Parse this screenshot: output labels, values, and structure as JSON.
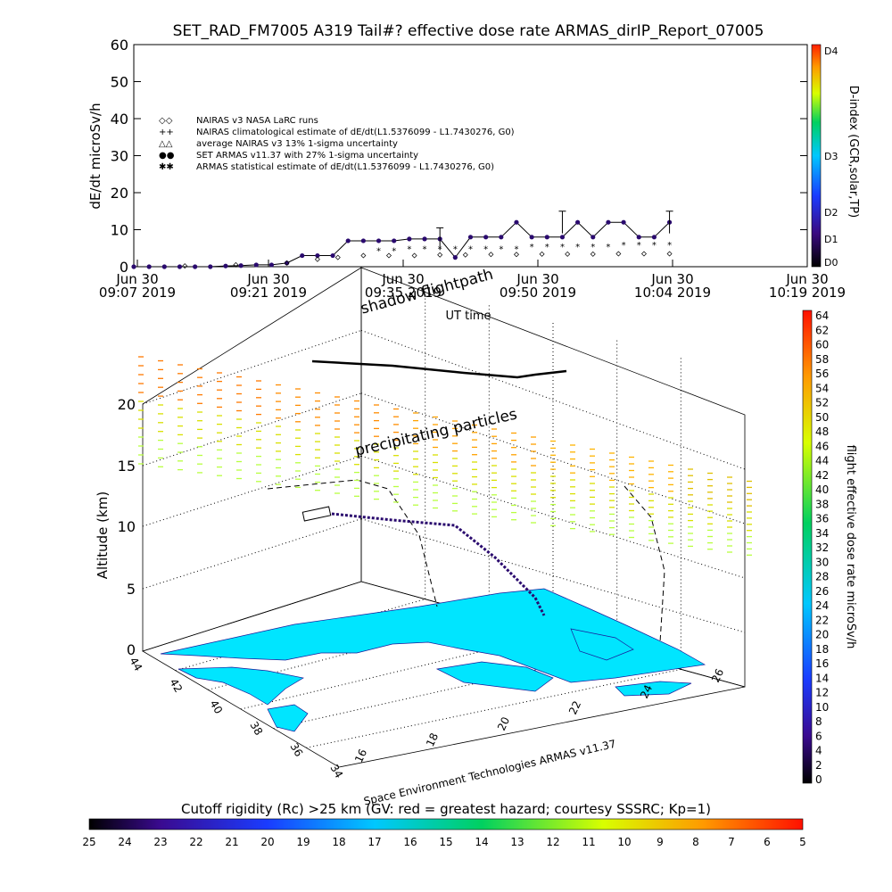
{
  "title": "SET_RAD_FM7005  A319 Tail#? effective dose rate ARMAS_dirIP_Report_07005",
  "colors": {
    "series_main": "#2a0a6e",
    "map_land": "#00e5ff"
  },
  "chart_data": [
    {
      "type": "line",
      "ylabel": "dE/dt microSv/h",
      "xlabel": "UT time",
      "ylim": [
        0,
        60
      ],
      "yticks": [
        "0",
        "10",
        "20",
        "30",
        "40",
        "50",
        "60"
      ],
      "xticks": [
        {
          "line1": "Jun 30",
          "line2": "09:07 2019"
        },
        {
          "line1": "Jun 30",
          "line2": "09:21 2019"
        },
        {
          "line1": "Jun 30",
          "line2": "09:35 2019"
        },
        {
          "line1": "Jun 30",
          "line2": "09:50 2019"
        },
        {
          "line1": "Jun 30",
          "line2": "10:04 2019"
        },
        {
          "line1": "Jun 30",
          "line2": "10:19 2019"
        }
      ],
      "legend": [
        {
          "symbol": "◇◇",
          "label": "NAIRAS v3 NASA LaRC runs"
        },
        {
          "symbol": "++",
          "label": "NAIRAS climatological estimate of dE/dt(L1.5376099 - L1.7430276, G0)"
        },
        {
          "symbol": "△△",
          "label": "average NAIRAS v3 13% 1-sigma uncertainty"
        },
        {
          "symbol": "●●",
          "label": "SET ARMAS v11.37 with 27% 1-sigma uncertainty"
        },
        {
          "symbol": "✱✱",
          "label": "ARMAS statistical estimate of dE/dt(L1.5376099 - L1.7430276, G0)"
        }
      ],
      "legend_position": "upper-left",
      "series": [
        {
          "name": "SET ARMAS v11.37 with 27% 1-sigma uncertainty",
          "x_minutes": [
            0,
            3,
            6,
            9,
            12,
            15,
            18,
            21,
            24,
            27,
            30,
            33,
            36,
            39,
            42,
            45,
            48,
            51,
            54,
            57,
            60,
            63,
            66,
            69,
            72,
            75,
            78,
            81,
            84,
            87,
            90,
            93,
            96,
            99,
            102,
            105
          ],
          "y": [
            0,
            0,
            0,
            0,
            0,
            0,
            0.2,
            0.3,
            0.5,
            0.5,
            1,
            3,
            3,
            3,
            7,
            7,
            7,
            7,
            7.5,
            7.5,
            7.5,
            2.5,
            8,
            8,
            8,
            12,
            8,
            8,
            8,
            12,
            8,
            12,
            12,
            8,
            8,
            12
          ]
        },
        {
          "name": "ARMAS statistical estimate of dE/dt(L1.5376099 - L1.7430276, G0)",
          "x_minutes": [
            48,
            51,
            54,
            57,
            60,
            63,
            66,
            69,
            72,
            75,
            78,
            81,
            84,
            87,
            90,
            93,
            96,
            99,
            102,
            105
          ],
          "y": [
            4.5,
            4.5,
            5,
            5,
            5,
            5,
            5,
            5,
            5,
            5,
            5.5,
            5.5,
            5.5,
            5.5,
            5.5,
            5.5,
            6,
            6,
            6,
            6
          ]
        },
        {
          "name": "NAIRAS v3 NASA LaRC runs",
          "x_minutes": [
            10,
            20,
            30,
            36,
            40,
            45,
            50,
            55,
            60,
            65,
            70,
            75,
            80,
            85,
            90,
            95,
            100,
            105
          ],
          "y": [
            0.2,
            0.5,
            1,
            2,
            2.5,
            3,
            3,
            3,
            3.2,
            3.2,
            3.3,
            3.3,
            3.4,
            3.4,
            3.4,
            3.5,
            3.5,
            3.5
          ]
        }
      ],
      "x_range_minutes": [
        0,
        132
      ],
      "colorbar": {
        "label": "D-index (GCR,solar,TP)",
        "ticks": [
          "D0",
          "D1",
          "D2",
          "D3",
          "D4"
        ]
      }
    },
    {
      "type": "scatter",
      "ylabel": "Altitude (km)",
      "zticks": [
        "0",
        "5",
        "10",
        "15",
        "20"
      ],
      "lat_ticks": [
        "44",
        "42",
        "40",
        "38",
        "36",
        "34"
      ],
      "lon_ticks": [
        "16",
        "18",
        "20",
        "22",
        "24",
        "26"
      ],
      "annotations": [
        "shadow flightpath",
        "precipitating particles"
      ],
      "credit": "Space Environment Technologies ARMAS v11.37",
      "colorbar_right": {
        "label": "flight effective dose rate microSv/h",
        "range": [
          0,
          64
        ],
        "ticks": [
          "0",
          "2",
          "4",
          "6",
          "8",
          "10",
          "12",
          "14",
          "16",
          "18",
          "20",
          "22",
          "24",
          "26",
          "28",
          "30",
          "32",
          "34",
          "36",
          "38",
          "40",
          "42",
          "44",
          "46",
          "48",
          "50",
          "52",
          "54",
          "56",
          "58",
          "60",
          "62",
          "64"
        ]
      },
      "colorbar_bottom": {
        "label": "Cutoff rigidity (Rc) >25 km (GV: red = greatest hazard; courtesy SSSRC; Kp=1)",
        "ticks": [
          "25",
          "24",
          "23",
          "22",
          "21",
          "20",
          "19",
          "18",
          "17",
          "16",
          "15",
          "14",
          "13",
          "12",
          "11",
          "10",
          "9",
          "8",
          "7",
          "6",
          "5"
        ]
      }
    }
  ]
}
